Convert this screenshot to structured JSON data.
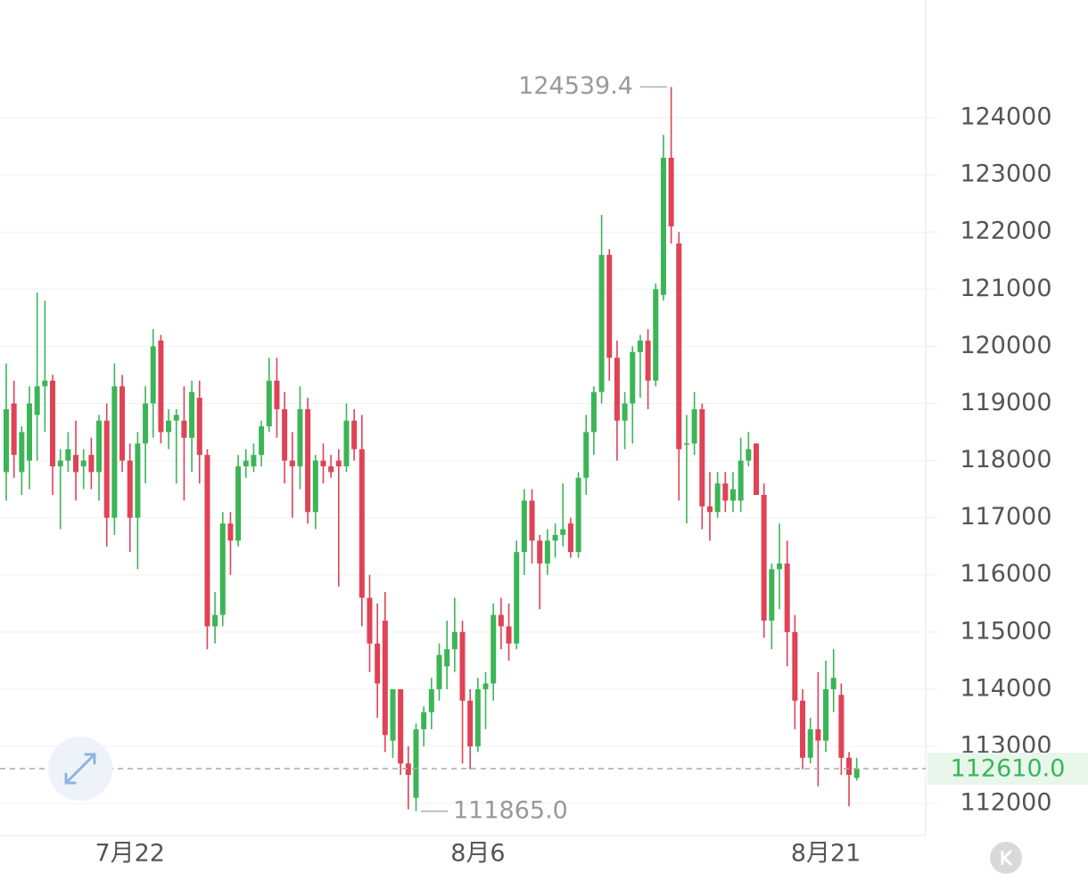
{
  "chart_data": {
    "type": "candlestick",
    "categories": [
      null,
      null,
      null,
      null,
      null,
      null,
      null,
      null,
      null,
      null,
      null,
      null,
      null,
      null,
      null,
      null,
      "7月22",
      null,
      null,
      null,
      null,
      null,
      null,
      null,
      null,
      null,
      null,
      null,
      null,
      null,
      null,
      null,
      null,
      null,
      null,
      null,
      null,
      null,
      null,
      null,
      null,
      null,
      null,
      null,
      null,
      null,
      null,
      null,
      null,
      null,
      null,
      null,
      null,
      null,
      null,
      null,
      null,
      null,
      null,
      null,
      null,
      "8月6",
      null,
      null,
      null,
      null,
      null,
      null,
      null,
      null,
      null,
      null,
      null,
      null,
      null,
      null,
      null,
      null,
      null,
      null,
      null,
      null,
      null,
      null,
      null,
      null,
      null,
      null,
      null,
      null,
      null,
      null,
      null,
      null,
      null,
      null,
      null,
      null,
      null,
      null,
      null,
      null,
      null,
      null,
      null,
      null,
      "8月21",
      null,
      null,
      null,
      null
    ],
    "open": [
      117800,
      119000,
      117800,
      118000,
      118800,
      119300,
      119400,
      117900,
      118000,
      118100,
      117900,
      118100,
      117800,
      118700,
      117000,
      119300,
      118000,
      117000,
      118300,
      119000,
      120100,
      118500,
      118700,
      118700,
      118400,
      119100,
      118100,
      115100,
      115300,
      116900,
      116600,
      117900,
      117900,
      118100,
      118600,
      119400,
      118900,
      118000,
      117900,
      118900,
      117100,
      118000,
      117900,
      118000,
      117900,
      118700,
      118200,
      115600,
      114800,
      115200,
      113100,
      114000,
      112700,
      112100,
      113300,
      113600,
      114000,
      114400,
      114700,
      115000,
      113800,
      113000,
      114000,
      114100,
      115300,
      115100,
      114800,
      116400,
      117300,
      116600,
      116200,
      116600,
      116700,
      116900,
      116400,
      117700,
      118500,
      119200,
      121600,
      119800,
      118700,
      119000,
      119900,
      120100,
      119400,
      120900,
      123300,
      121800,
      118300,
      118300,
      118900,
      117200,
      117100,
      117600,
      117300,
      117300,
      118000,
      118300,
      117400,
      115200,
      116100,
      116200,
      115000,
      113800,
      112800,
      113300,
      113100,
      114000,
      113900,
      112800,
      112450
    ],
    "high": [
      119700,
      119400,
      118600,
      119300,
      120940,
      120800,
      119500,
      118200,
      118500,
      118700,
      118200,
      118400,
      118800,
      119000,
      119700,
      119500,
      118300,
      118500,
      119300,
      120300,
      120200,
      118900,
      118900,
      119300,
      119400,
      119400,
      118200,
      115700,
      117100,
      117100,
      118100,
      118200,
      118300,
      118700,
      119800,
      119800,
      119200,
      118500,
      119300,
      119100,
      118100,
      118300,
      118100,
      118200,
      119000,
      118900,
      118800,
      116000,
      115500,
      115700,
      114000,
      114000,
      113000,
      113400,
      113700,
      114200,
      114800,
      115200,
      115600,
      115200,
      114000,
      114200,
      114300,
      115500,
      115600,
      115500,
      116600,
      117500,
      117500,
      116700,
      116800,
      116900,
      117600,
      117000,
      117800,
      118800,
      119300,
      122300,
      121700,
      120100,
      119200,
      120000,
      120200,
      120300,
      121100,
      123700,
      124539.4,
      122000,
      118800,
      119200,
      119000,
      117800,
      117800,
      117800,
      117800,
      118400,
      118500,
      118300,
      117600,
      116200,
      116900,
      116600,
      115300,
      114000,
      113500,
      114300,
      114500,
      114700,
      114100,
      112900,
      112800
    ],
    "low": [
      117300,
      117700,
      117400,
      117500,
      118000,
      118500,
      117400,
      116800,
      117800,
      117300,
      117500,
      117500,
      117300,
      116500,
      116700,
      117800,
      116400,
      116100,
      117600,
      118400,
      118300,
      118200,
      117600,
      117300,
      117800,
      117600,
      114700,
      114800,
      115100,
      116000,
      116500,
      117700,
      117800,
      117900,
      118500,
      118400,
      117600,
      117000,
      117500,
      116900,
      116800,
      117600,
      117700,
      115800,
      117800,
      118000,
      115100,
      114300,
      113500,
      112900,
      112800,
      112500,
      111900,
      111865,
      113000,
      113300,
      113800,
      114000,
      114300,
      112700,
      112600,
      112900,
      113300,
      113800,
      114700,
      114500,
      114700,
      116000,
      116200,
      115400,
      116000,
      116300,
      116500,
      116300,
      116300,
      117400,
      118100,
      119000,
      119400,
      118000,
      118200,
      118300,
      119100,
      118900,
      119300,
      120800,
      121800,
      117300,
      116900,
      118100,
      116800,
      116600,
      117000,
      117100,
      117100,
      117100,
      117900,
      117400,
      114900,
      114700,
      115400,
      114400,
      113300,
      112600,
      112700,
      112300,
      112900,
      113600,
      112500,
      111950,
      112400
    ],
    "close": [
      118900,
      118100,
      118500,
      119000,
      119300,
      119400,
      117900,
      118000,
      118200,
      117800,
      118000,
      117800,
      118700,
      117000,
      119300,
      118000,
      117000,
      118300,
      119000,
      120000,
      118500,
      118700,
      118800,
      118400,
      119200,
      118100,
      115100,
      115300,
      116900,
      116600,
      117900,
      118000,
      118100,
      118600,
      119400,
      118900,
      118000,
      117900,
      118900,
      117100,
      118000,
      117900,
      117800,
      117900,
      118700,
      118200,
      115600,
      114800,
      114100,
      113200,
      114000,
      112700,
      112500,
      113300,
      113600,
      114000,
      114600,
      114700,
      115000,
      113800,
      113000,
      114000,
      114100,
      115300,
      115100,
      114800,
      116400,
      117300,
      116600,
      116200,
      116600,
      116700,
      116800,
      116400,
      117700,
      118500,
      119200,
      121600,
      119800,
      118700,
      119000,
      119900,
      120100,
      119400,
      121000,
      123300,
      122100,
      118200,
      118300,
      118900,
      117200,
      117100,
      117600,
      117300,
      117500,
      118000,
      118200,
      117400,
      115200,
      116100,
      116200,
      115000,
      113800,
      112800,
      113300,
      113100,
      114000,
      114200,
      112800,
      112500,
      112610
    ],
    "up_color": "#3cb557",
    "down_color": "#e04256",
    "ylim": [
      111440,
      126060
    ],
    "yticks": [
      112000,
      113000,
      114000,
      115000,
      116000,
      117000,
      118000,
      119000,
      120000,
      121000,
      122000,
      123000,
      124000
    ],
    "grid": true,
    "high_marker": {
      "value": 124539.4,
      "label": "124539.4"
    },
    "low_marker": {
      "value": 111865,
      "label": "111865.0"
    },
    "price_line": {
      "value": 112610,
      "label": "112610.0"
    }
  }
}
